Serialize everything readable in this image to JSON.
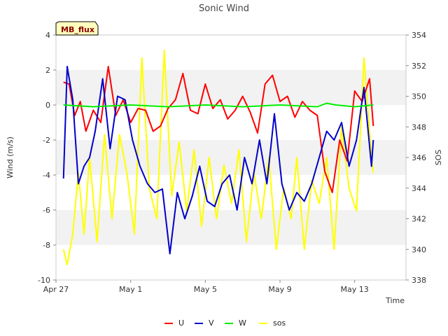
{
  "chart_data": {
    "type": "line",
    "title": "Sonic Wind",
    "site_label": "MB_flux",
    "xlabel": "Time",
    "ylabel": "Wind (m/s)",
    "y2label": "SOS",
    "x_start": "Apr 27",
    "x_ticks": [
      {
        "day": 0,
        "label": "Apr 27"
      },
      {
        "day": 4,
        "label": "May 1"
      },
      {
        "day": 8,
        "label": "May 5"
      },
      {
        "day": 12,
        "label": "May 9"
      },
      {
        "day": 16,
        "label": "May 13"
      }
    ],
    "x_range_days": [
      0,
      18
    ],
    "ylim": [
      -10,
      4
    ],
    "y_ticks": [
      4,
      2,
      0,
      -2,
      -4,
      -6,
      -8,
      -10
    ],
    "y2lim": [
      338,
      354
    ],
    "y2_ticks": [
      354,
      352,
      350,
      348,
      346,
      344,
      342,
      340,
      338
    ],
    "grid": "horizontal bands",
    "legend_position": "bottom",
    "series": [
      {
        "name": "U",
        "axis": "left",
        "color": "#ff0000",
        "x": [
          0.4,
          0.7,
          1.0,
          1.3,
          1.6,
          2.0,
          2.4,
          2.8,
          3.2,
          3.6,
          4.0,
          4.4,
          4.8,
          5.2,
          5.6,
          6.0,
          6.4,
          6.8,
          7.2,
          7.6,
          8.0,
          8.4,
          8.8,
          9.2,
          9.6,
          10.0,
          10.4,
          10.8,
          11.2,
          11.6,
          12.0,
          12.4,
          12.8,
          13.2,
          13.6,
          14.0,
          14.4,
          14.8,
          15.2,
          15.6,
          16.0,
          16.4,
          16.8,
          17.0
        ],
        "values": [
          1.3,
          1.2,
          -0.6,
          0.2,
          -1.5,
          -0.3,
          -1.0,
          2.2,
          -0.6,
          0.3,
          -1.0,
          -0.2,
          -0.3,
          -1.5,
          -1.2,
          -0.2,
          0.3,
          1.8,
          -0.3,
          -0.5,
          1.2,
          -0.2,
          0.3,
          -0.8,
          -0.3,
          0.5,
          -0.4,
          -1.6,
          1.2,
          1.7,
          0.2,
          0.5,
          -0.7,
          0.2,
          -0.3,
          -0.6,
          -3.8,
          -5.0,
          -2.0,
          -3.2,
          0.8,
          0.2,
          1.5,
          -1.2
        ]
      },
      {
        "name": "V",
        "axis": "left",
        "color": "#0000cc",
        "x": [
          0.4,
          0.6,
          0.9,
          1.2,
          1.5,
          1.8,
          2.1,
          2.5,
          2.9,
          3.3,
          3.7,
          4.1,
          4.5,
          4.9,
          5.3,
          5.7,
          6.1,
          6.5,
          6.9,
          7.3,
          7.7,
          8.1,
          8.5,
          8.9,
          9.3,
          9.7,
          10.1,
          10.5,
          10.9,
          11.3,
          11.7,
          12.1,
          12.5,
          12.9,
          13.3,
          13.7,
          14.1,
          14.5,
          14.9,
          15.3,
          15.7,
          16.1,
          16.5,
          16.9,
          17.0
        ],
        "values": [
          -4.2,
          2.2,
          0.3,
          -4.5,
          -3.5,
          -3.0,
          -1.5,
          1.5,
          -2.5,
          0.5,
          0.3,
          -2.0,
          -3.5,
          -4.5,
          -5.0,
          -4.8,
          -8.5,
          -5.0,
          -6.5,
          -5.2,
          -3.5,
          -5.5,
          -5.8,
          -4.5,
          -4.0,
          -6.0,
          -3.0,
          -4.5,
          -2.0,
          -4.5,
          -0.5,
          -4.5,
          -6.0,
          -5.0,
          -5.5,
          -4.5,
          -3.0,
          -1.5,
          -2.0,
          -1.0,
          -3.5,
          -2.0,
          1.0,
          -3.5,
          -2.0
        ]
      },
      {
        "name": "W",
        "axis": "left",
        "color": "#00ee00",
        "x": [
          0.4,
          2.0,
          4.0,
          6.0,
          8.0,
          10.0,
          12.0,
          14.0,
          14.5,
          15.0,
          16.0,
          17.0
        ],
        "values": [
          0.0,
          -0.1,
          0.0,
          -0.1,
          0.0,
          -0.1,
          0.0,
          -0.1,
          0.1,
          0.0,
          -0.1,
          0.0
        ]
      },
      {
        "name": "sos",
        "axis": "right",
        "color": "#ffff00",
        "x": [
          0.4,
          0.6,
          0.9,
          1.2,
          1.5,
          1.8,
          2.2,
          2.6,
          3.0,
          3.4,
          3.8,
          4.2,
          4.6,
          5.0,
          5.4,
          5.8,
          6.2,
          6.6,
          7.0,
          7.4,
          7.8,
          8.2,
          8.6,
          9.0,
          9.4,
          9.8,
          10.2,
          10.6,
          11.0,
          11.4,
          11.8,
          12.2,
          12.6,
          12.9,
          13.3,
          13.7,
          14.1,
          14.5,
          14.9,
          15.3,
          15.7,
          16.1,
          16.5,
          16.9,
          17.0
        ],
        "values": [
          340.0,
          339.0,
          341.0,
          345.0,
          341.0,
          346.0,
          340.5,
          347.5,
          342.0,
          347.5,
          345.0,
          341.0,
          352.5,
          344.0,
          342.0,
          353.0,
          343.5,
          347.0,
          342.5,
          346.5,
          341.5,
          346.0,
          342.0,
          345.5,
          343.0,
          346.5,
          340.5,
          345.0,
          342.0,
          346.0,
          340.0,
          344.0,
          342.0,
          346.0,
          340.0,
          344.5,
          343.0,
          346.0,
          340.0,
          348.0,
          344.0,
          342.5,
          352.5,
          346.0,
          345.0
        ]
      }
    ]
  }
}
